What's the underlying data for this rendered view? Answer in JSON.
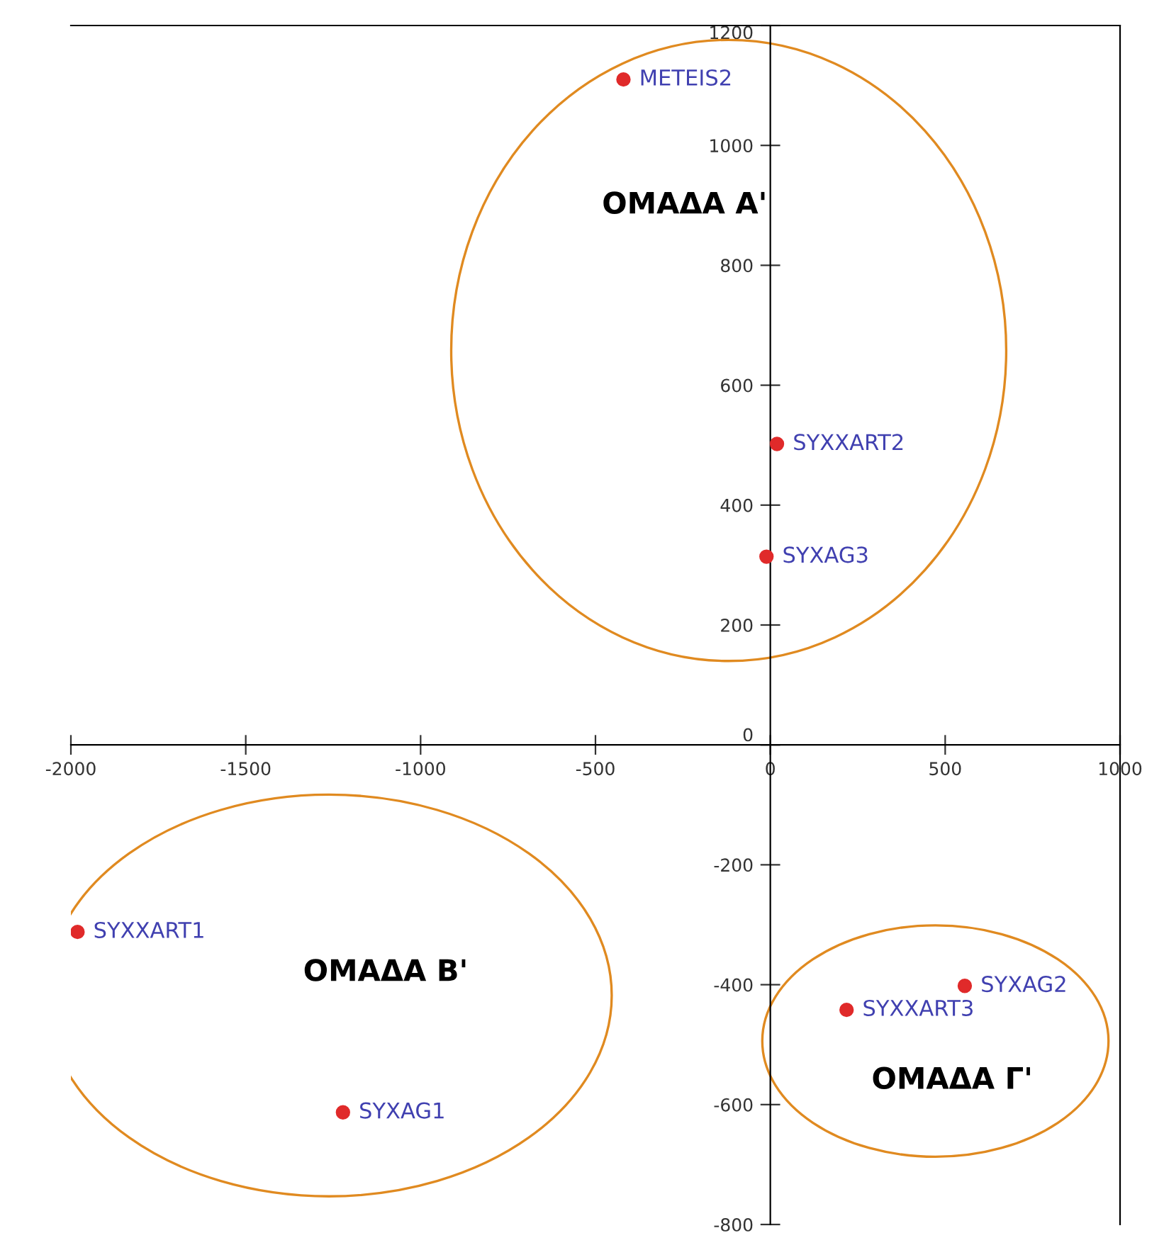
{
  "chart_data": {
    "type": "scatter",
    "x": [
      -420,
      19,
      -11,
      -1981,
      -1222,
      218,
      556
    ],
    "series": [
      {
        "color": "#e02a2a",
        "values": [
          1110,
          502,
          314,
          -312,
          -613,
          -442,
          -402
        ],
        "value_labels": [
          "METEIS2",
          "SYXXART2",
          "SYXAG3",
          "SYXXART1",
          "SYXAG1",
          "SYXXART3",
          "SYXAG2"
        ]
      }
    ],
    "xlim": [
      -2000,
      1000
    ],
    "xticks": [
      -2000,
      -1500,
      -1000,
      -500,
      0,
      500,
      1000
    ],
    "ylim": [
      -800,
      1200
    ],
    "yticks": [
      -800,
      -600,
      -400,
      -200,
      0,
      200,
      400,
      600,
      800,
      1000,
      1200
    ],
    "marker": "circle",
    "grid": false,
    "annotations": [
      "ΟΜΑΔΑ Α'",
      "ΟΜΑΔΑ Β'",
      "ΟΜΑΔΑ Γ'"
    ]
  }
}
